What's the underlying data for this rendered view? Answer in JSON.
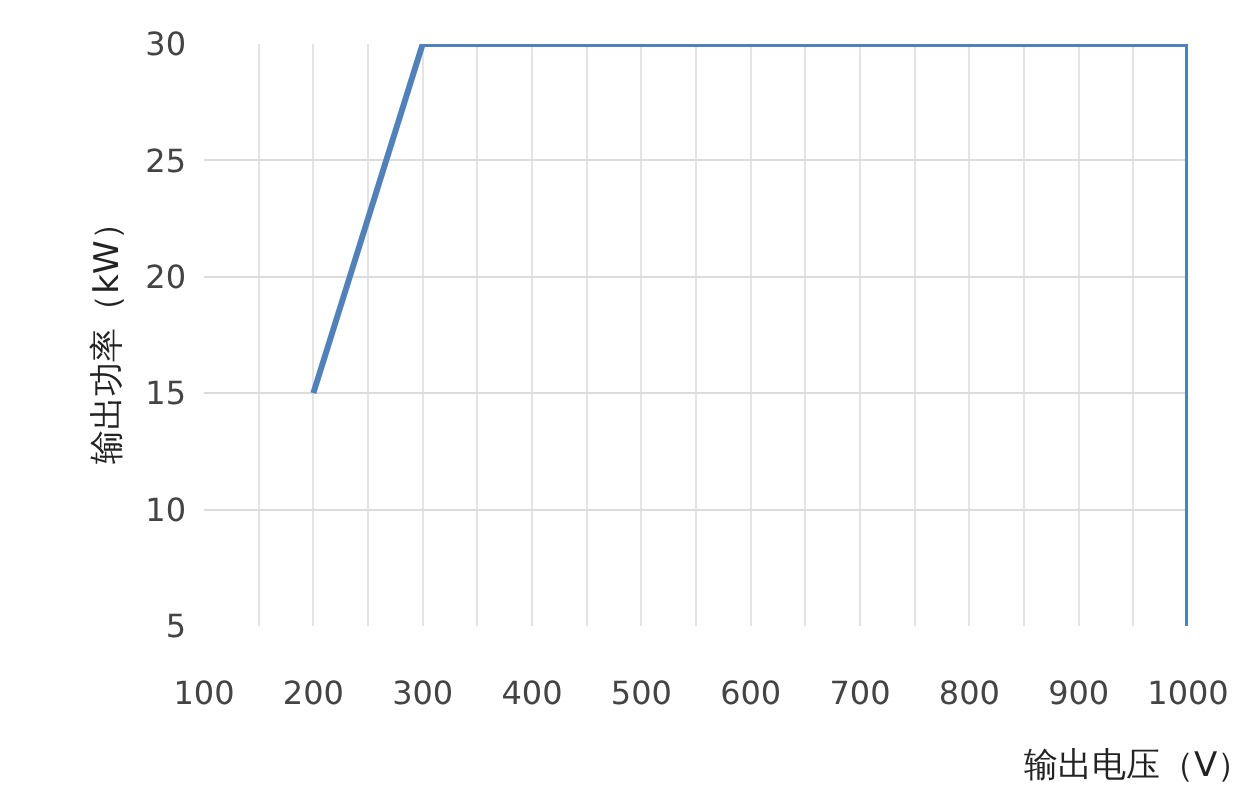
{
  "chart_data": {
    "type": "line",
    "xlabel": "输出电压（V）",
    "ylabel": "输出功率（kW）",
    "x": [
      200,
      300,
      1000,
      1000
    ],
    "series": [
      {
        "color": "#4f81bd",
        "values": [
          15,
          30,
          30,
          5
        ]
      }
    ],
    "xlim": [
      100,
      1000
    ],
    "ylim": [
      5,
      30
    ],
    "xticks": [
      100,
      {
        "value": 150,
        "label": null
      },
      200,
      {
        "value": 250,
        "label": null
      },
      300,
      {
        "value": 350,
        "label": null
      },
      400,
      {
        "value": 450,
        "label": null
      },
      500,
      {
        "value": 550,
        "label": null
      },
      600,
      {
        "value": 650,
        "label": null
      },
      700,
      {
        "value": 750,
        "label": null
      },
      800,
      {
        "value": 850,
        "label": null
      },
      900,
      {
        "value": 950,
        "label": null
      },
      1000
    ],
    "yticks": [
      5,
      10,
      15,
      20,
      25,
      30
    ],
    "grid": true,
    "marker": "none",
    "line_style": "solid"
  }
}
